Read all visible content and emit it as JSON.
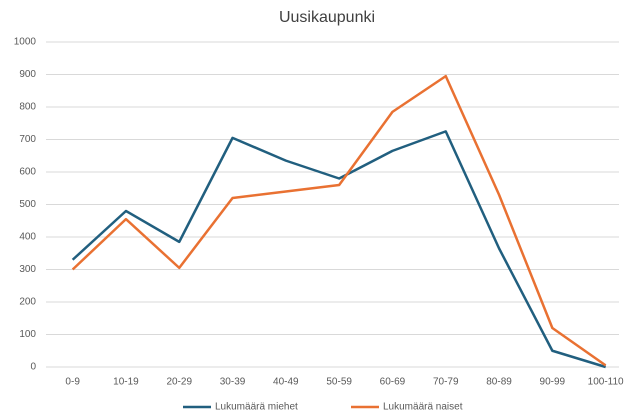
{
  "chart_data": {
    "type": "line",
    "title": "Uusikaupunki",
    "categories": [
      "0-9",
      "10-19",
      "20-29",
      "30-39",
      "40-49",
      "50-59",
      "60-69",
      "70-79",
      "80-89",
      "90-99",
      "100-110"
    ],
    "series": [
      {
        "name": "Lukumäärä miehet",
        "color": "#215f7f",
        "values": [
          330,
          480,
          385,
          705,
          635,
          580,
          665,
          725,
          365,
          50,
          0
        ]
      },
      {
        "name": "Lukumäärä naiset",
        "color": "#e97132",
        "values": [
          300,
          455,
          305,
          520,
          540,
          560,
          785,
          895,
          530,
          120,
          5
        ]
      }
    ],
    "ylim": [
      0,
      1000
    ],
    "yticks": [
      0,
      100,
      200,
      300,
      400,
      500,
      600,
      700,
      800,
      900,
      1000
    ],
    "grid": true,
    "legend": "bottom"
  }
}
